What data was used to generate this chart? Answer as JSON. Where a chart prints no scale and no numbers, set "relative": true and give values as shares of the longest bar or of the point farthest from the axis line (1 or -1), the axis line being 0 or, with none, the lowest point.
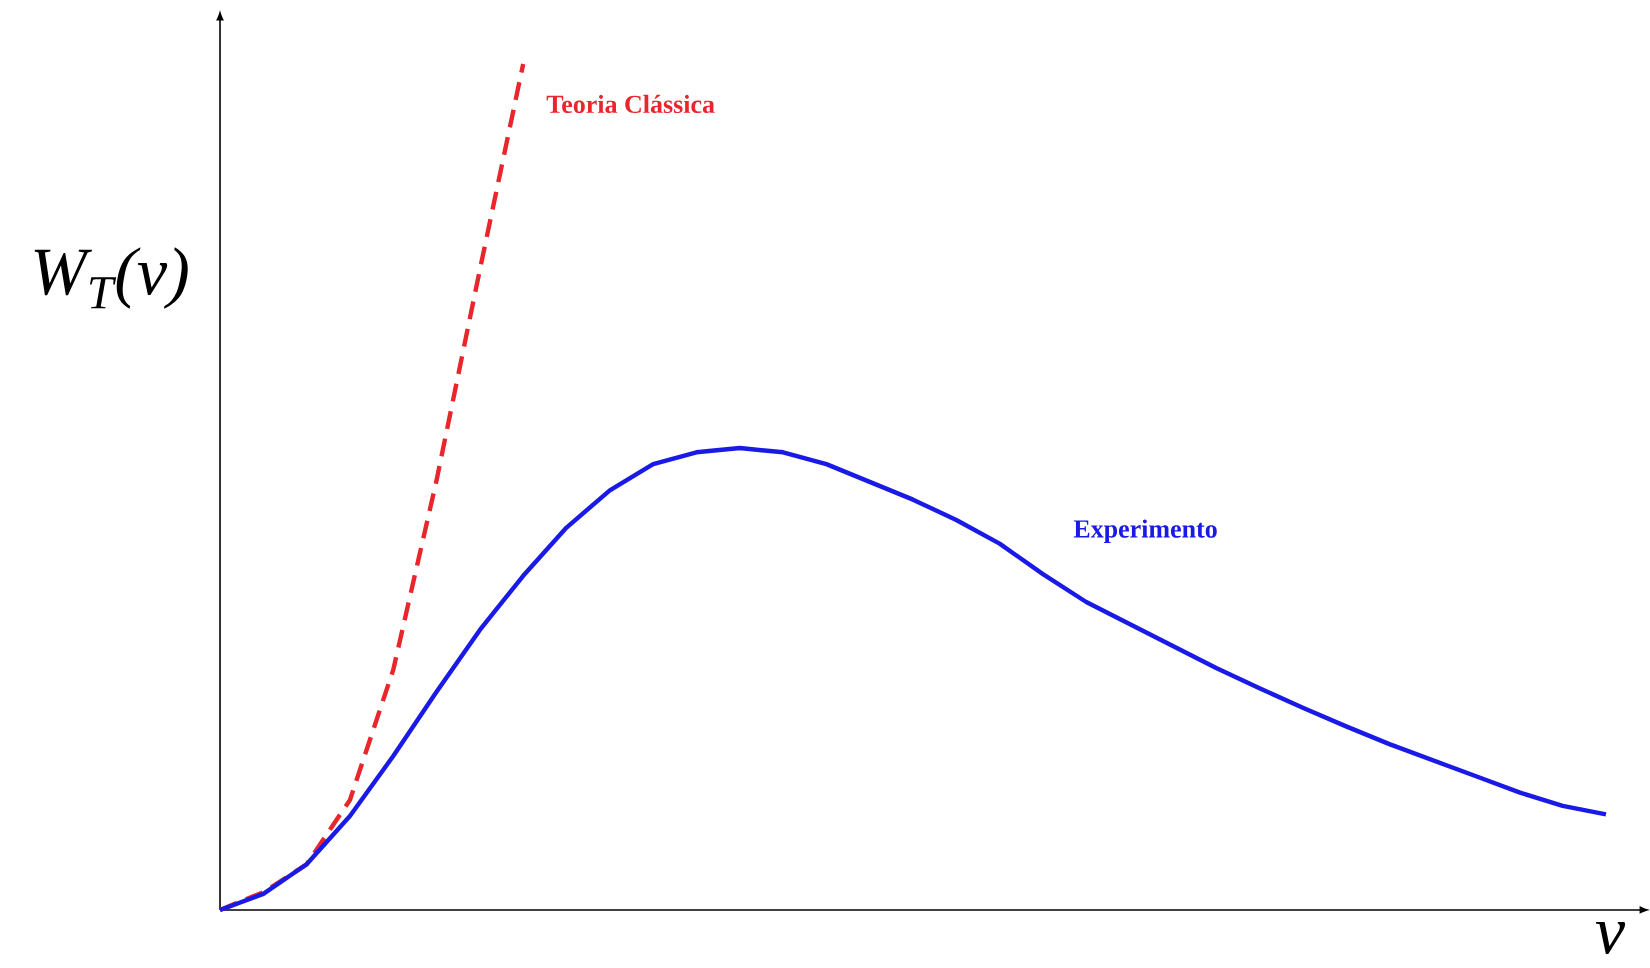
{
  "chart_data": {
    "type": "line",
    "relative": true,
    "ylabel": "W$_{T}$(ν)",
    "xlabel": "ν",
    "categories": [
      null,
      null,
      null,
      null,
      null,
      null,
      null,
      null,
      null,
      null,
      null,
      null,
      null,
      null,
      null,
      null,
      null,
      null,
      null,
      null,
      null,
      null,
      null,
      null,
      null,
      null,
      null,
      null,
      null,
      null,
      null,
      null,
      null
    ],
    "series": [
      {
        "name": "Teoria Clássica",
        "color": "#e8262b",
        "line_style": "dashed",
        "values": [
          0,
          0.021,
          0.054,
          0.13,
          0.284,
          0.508,
          0.757,
          1,
          null,
          null,
          null,
          null,
          null,
          null,
          null,
          null,
          null,
          null,
          null,
          null,
          null,
          null,
          null,
          null,
          null,
          null,
          null,
          null,
          null,
          null,
          null,
          null,
          null
        ]
      },
      {
        "name": "Experimento",
        "color": "#1a1ae6",
        "line_style": "solid",
        "values": [
          0,
          0.019,
          0.054,
          0.111,
          0.182,
          0.258,
          0.331,
          0.395,
          0.452,
          0.496,
          0.527,
          0.541,
          0.546,
          0.541,
          0.527,
          0.506,
          0.485,
          0.461,
          0.433,
          0.397,
          0.364,
          0.338,
          0.312,
          0.286,
          0.262,
          0.239,
          0.217,
          0.196,
          0.177,
          0.158,
          0.139,
          0.123,
          0.113
        ]
      }
    ],
    "marker": "none",
    "legend": false
  }
}
